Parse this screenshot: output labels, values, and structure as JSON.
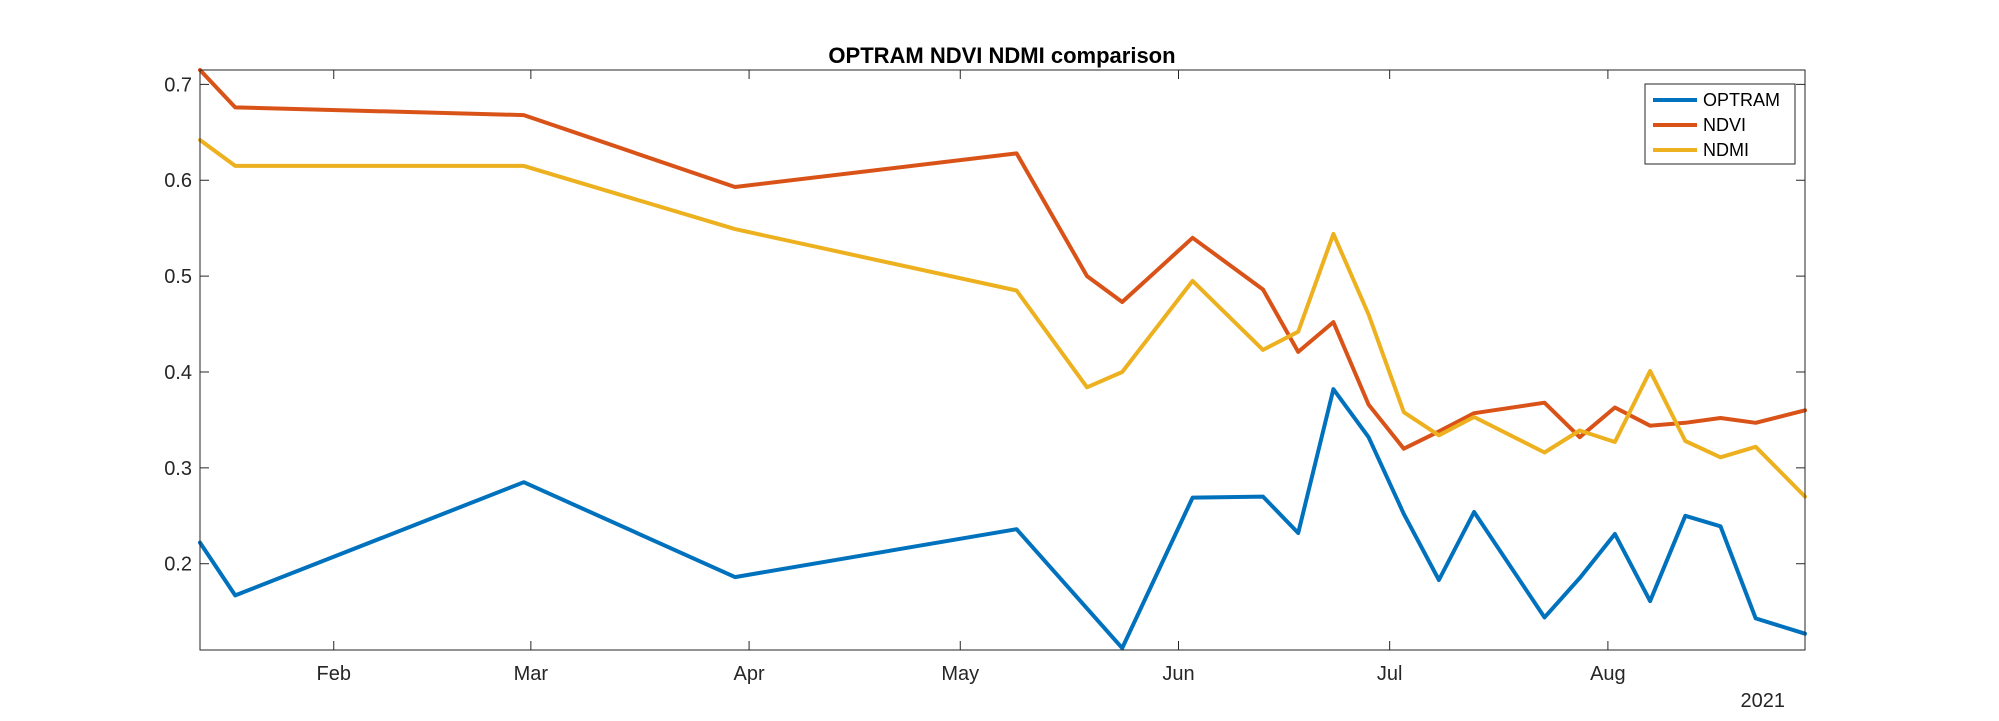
{
  "chart_data": {
    "type": "line",
    "title": "OPTRAM NDVI NDMI comparison",
    "xlabel": "",
    "ylabel": "",
    "year_label": "2021",
    "xlim": [
      "2021-01-13",
      "2021-08-29"
    ],
    "ylim": [
      0.11,
      0.715
    ],
    "x_ticks": [
      {
        "date": "2021-02-01",
        "label": "Feb"
      },
      {
        "date": "2021-03-01",
        "label": "Mar"
      },
      {
        "date": "2021-04-01",
        "label": "Apr"
      },
      {
        "date": "2021-05-01",
        "label": "May"
      },
      {
        "date": "2021-06-01",
        "label": "Jun"
      },
      {
        "date": "2021-07-01",
        "label": "Jul"
      },
      {
        "date": "2021-08-01",
        "label": "Aug"
      }
    ],
    "y_ticks": [
      0.2,
      0.3,
      0.4,
      0.5,
      0.6,
      0.7
    ],
    "y_tick_labels": [
      "0.2",
      "0.3",
      "0.4",
      "0.5",
      "0.6",
      "0.7"
    ],
    "grid": false,
    "legend_position": "top-right",
    "colors": {
      "OPTRAM": "#0072BD",
      "NDVI": "#D95319",
      "NDMI": "#EDB120"
    },
    "series": [
      {
        "name": "OPTRAM",
        "x": [
          "2021-01-13",
          "2021-01-18",
          "2021-02-28",
          "2021-03-30",
          "2021-05-09",
          "2021-05-24",
          "2021-06-03",
          "2021-06-13",
          "2021-06-18",
          "2021-06-23",
          "2021-06-28",
          "2021-07-03",
          "2021-07-08",
          "2021-07-13",
          "2021-07-23",
          "2021-07-28",
          "2021-08-02",
          "2021-08-07",
          "2021-08-12",
          "2021-08-17",
          "2021-08-22",
          "2021-08-29"
        ],
        "values": [
          0.222,
          0.167,
          0.285,
          0.186,
          0.236,
          0.112,
          0.269,
          0.27,
          0.232,
          0.382,
          0.332,
          0.252,
          0.183,
          0.254,
          0.144,
          0.185,
          0.231,
          0.161,
          0.25,
          0.239,
          0.143,
          0.127
        ]
      },
      {
        "name": "NDVI",
        "x": [
          "2021-01-13",
          "2021-01-18",
          "2021-02-28",
          "2021-03-30",
          "2021-05-09",
          "2021-05-19",
          "2021-05-24",
          "2021-06-03",
          "2021-06-13",
          "2021-06-18",
          "2021-06-23",
          "2021-06-28",
          "2021-07-03",
          "2021-07-08",
          "2021-07-13",
          "2021-07-23",
          "2021-07-28",
          "2021-08-02",
          "2021-08-07",
          "2021-08-12",
          "2021-08-17",
          "2021-08-22",
          "2021-08-29"
        ],
        "values": [
          0.715,
          0.676,
          0.668,
          0.593,
          0.628,
          0.5,
          0.473,
          0.54,
          0.486,
          0.421,
          0.452,
          0.366,
          0.32,
          0.338,
          0.357,
          0.368,
          0.332,
          0.363,
          0.344,
          0.347,
          0.352,
          0.347,
          0.36
        ]
      },
      {
        "name": "NDMI",
        "x": [
          "2021-01-13",
          "2021-01-18",
          "2021-02-28",
          "2021-03-30",
          "2021-05-09",
          "2021-05-19",
          "2021-05-24",
          "2021-06-03",
          "2021-06-13",
          "2021-06-18",
          "2021-06-23",
          "2021-06-28",
          "2021-07-03",
          "2021-07-08",
          "2021-07-13",
          "2021-07-23",
          "2021-07-28",
          "2021-08-02",
          "2021-08-07",
          "2021-08-12",
          "2021-08-17",
          "2021-08-22",
          "2021-08-29"
        ],
        "values": [
          0.642,
          0.615,
          0.615,
          0.549,
          0.485,
          0.384,
          0.4,
          0.495,
          0.423,
          0.442,
          0.544,
          0.46,
          0.358,
          0.334,
          0.353,
          0.316,
          0.339,
          0.327,
          0.401,
          0.328,
          0.311,
          0.322,
          0.27
        ]
      }
    ]
  }
}
